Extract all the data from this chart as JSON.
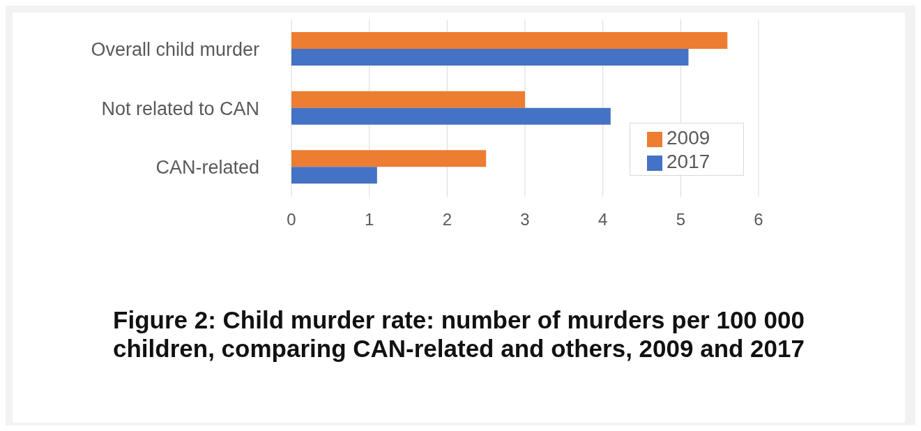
{
  "chart_data": {
    "type": "bar",
    "orientation": "horizontal",
    "title": "Figure 2: Child murder rate: number of murders per 100 000 children, comparing CAN-related and others, 2009 and 2017",
    "categories": [
      "Overall child murder",
      "Not related to CAN",
      "CAN-related"
    ],
    "series": [
      {
        "name": "2009",
        "color": "#ed7d31",
        "values": [
          5.6,
          3.0,
          2.5
        ]
      },
      {
        "name": "2017",
        "color": "#4472c4",
        "values": [
          5.1,
          4.1,
          1.1
        ]
      }
    ],
    "xlim": [
      0,
      6
    ],
    "xticks": [
      0,
      1,
      2,
      3,
      4,
      5,
      6
    ],
    "grid": "x",
    "legend": "right"
  }
}
